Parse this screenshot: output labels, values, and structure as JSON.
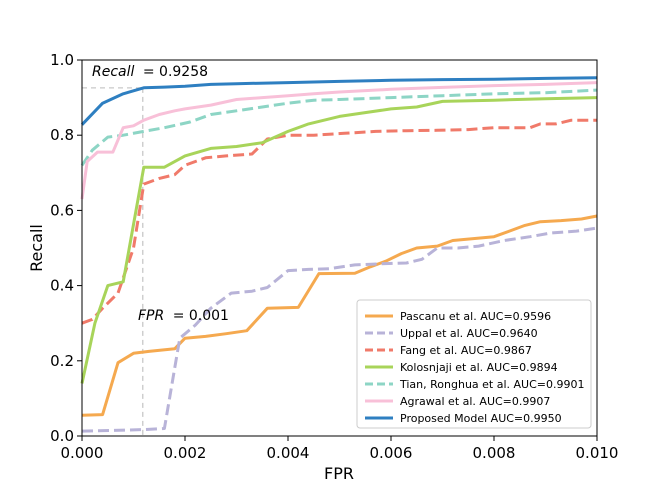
{
  "chart_data": {
    "type": "line",
    "xlabel": "FPR",
    "ylabel": "Recall",
    "xlim": [
      0,
      0.01
    ],
    "ylim": [
      0,
      1.0
    ],
    "xticks": [
      "0.000",
      "0.002",
      "0.004",
      "0.006",
      "0.008",
      "0.010"
    ],
    "yticks": [
      "0.0",
      "0.2",
      "0.4",
      "0.6",
      "0.8",
      "1.0"
    ],
    "xtick_values": [
      0,
      0.002,
      0.004,
      0.006,
      0.008,
      0.01
    ],
    "ytick_values": [
      0,
      0.2,
      0.4,
      0.6,
      0.8,
      1.0
    ],
    "legend_position": "lower-right",
    "annotations": [
      {
        "name": "recall-annotation",
        "label": "Recall",
        "value_text": "= 0.9258",
        "line": "horizontal",
        "value": 0.9258
      },
      {
        "name": "fpr-annotation",
        "label": "FPR",
        "value_text": "= 0.001",
        "line": "vertical",
        "value": 0.00118
      }
    ],
    "series": [
      {
        "name": "Pascanu et al. AUC=0.9596",
        "color": "#f5a94f",
        "dash": "solid",
        "x": [
          0,
          0.0004,
          0.0007,
          0.001,
          0.0013,
          0.0018,
          0.002,
          0.0024,
          0.0028,
          0.0032,
          0.0036,
          0.0042,
          0.0046,
          0.0053,
          0.0056,
          0.0059,
          0.0062,
          0.0065,
          0.0069,
          0.0072,
          0.0076,
          0.008,
          0.0083,
          0.0086,
          0.0089,
          0.0093,
          0.0097,
          0.01
        ],
        "y": [
          0.055,
          0.057,
          0.195,
          0.22,
          0.225,
          0.232,
          0.26,
          0.265,
          0.272,
          0.28,
          0.34,
          0.342,
          0.432,
          0.433,
          0.45,
          0.465,
          0.485,
          0.5,
          0.505,
          0.52,
          0.525,
          0.53,
          0.545,
          0.56,
          0.57,
          0.573,
          0.577,
          0.585
        ]
      },
      {
        "name": "Uppal et al. AUC=0.9640",
        "color": "#b8b3d8",
        "dash": "dashed",
        "x": [
          0,
          0.0006,
          0.0012,
          0.0016,
          0.0019,
          0.0022,
          0.0025,
          0.0029,
          0.0033,
          0.0036,
          0.004,
          0.0044,
          0.0048,
          0.0053,
          0.0058,
          0.0063,
          0.0066,
          0.0069,
          0.0073,
          0.0077,
          0.0082,
          0.0087,
          0.0091,
          0.0096,
          0.01
        ],
        "y": [
          0.013,
          0.015,
          0.017,
          0.02,
          0.26,
          0.295,
          0.34,
          0.38,
          0.385,
          0.395,
          0.44,
          0.443,
          0.445,
          0.455,
          0.458,
          0.46,
          0.47,
          0.5,
          0.5,
          0.505,
          0.52,
          0.53,
          0.54,
          0.545,
          0.553
        ]
      },
      {
        "name": "Fang et al. AUC=0.9867",
        "color": "#f07a6a",
        "dash": "dashed",
        "x": [
          0,
          0.0002,
          0.0004,
          0.0007,
          0.001,
          0.0012,
          0.0015,
          0.0018,
          0.002,
          0.0024,
          0.0028,
          0.0033,
          0.0036,
          0.004,
          0.0045,
          0.0051,
          0.0057,
          0.0063,
          0.0069,
          0.0075,
          0.008,
          0.0083,
          0.0087,
          0.0089,
          0.0092,
          0.0095,
          0.01
        ],
        "y": [
          0.3,
          0.31,
          0.34,
          0.38,
          0.5,
          0.67,
          0.685,
          0.695,
          0.72,
          0.74,
          0.745,
          0.75,
          0.79,
          0.8,
          0.8,
          0.805,
          0.81,
          0.812,
          0.813,
          0.815,
          0.82,
          0.82,
          0.82,
          0.83,
          0.83,
          0.84,
          0.84
        ]
      },
      {
        "name": "Kolosnjaji et al. AUC=0.9894",
        "color": "#a8d45a",
        "dash": "solid",
        "x": [
          0,
          0.00025,
          0.0005,
          0.0008,
          0.0012,
          0.0016,
          0.002,
          0.0025,
          0.003,
          0.0035,
          0.004,
          0.0044,
          0.005,
          0.0055,
          0.006,
          0.0065,
          0.007,
          0.008,
          0.009,
          0.01
        ],
        "y": [
          0.14,
          0.3,
          0.4,
          0.41,
          0.715,
          0.715,
          0.745,
          0.765,
          0.77,
          0.78,
          0.81,
          0.83,
          0.85,
          0.86,
          0.87,
          0.875,
          0.89,
          0.893,
          0.897,
          0.9
        ]
      },
      {
        "name": "Tian, Ronghua et al. AUC=0.9901",
        "color": "#8dd5c5",
        "dash": "dashed",
        "x": [
          0,
          0.0002,
          0.0005,
          0.0008,
          0.0012,
          0.0016,
          0.0021,
          0.0025,
          0.003,
          0.0035,
          0.004,
          0.0045,
          0.005,
          0.006,
          0.007,
          0.008,
          0.009,
          0.01
        ],
        "y": [
          0.72,
          0.76,
          0.795,
          0.8,
          0.81,
          0.82,
          0.835,
          0.855,
          0.865,
          0.875,
          0.885,
          0.893,
          0.895,
          0.9,
          0.905,
          0.91,
          0.913,
          0.92
        ]
      },
      {
        "name": "Agrawal et al. AUC=0.9907",
        "color": "#f8c0d8",
        "dash": "solid",
        "x": [
          0,
          0.0001,
          0.0003,
          0.0006,
          0.0008,
          0.001,
          0.0012,
          0.0015,
          0.0018,
          0.002,
          0.0025,
          0.003,
          0.0035,
          0.004,
          0.0045,
          0.005,
          0.006,
          0.007,
          0.008,
          0.009,
          0.01
        ],
        "y": [
          0.63,
          0.73,
          0.755,
          0.755,
          0.82,
          0.825,
          0.84,
          0.855,
          0.865,
          0.87,
          0.88,
          0.895,
          0.9,
          0.905,
          0.91,
          0.915,
          0.922,
          0.927,
          0.932,
          0.935,
          0.94
        ]
      },
      {
        "name": "Proposed Model AUC=0.9950",
        "color": "#2e7fc1",
        "dash": "solid",
        "x": [
          0,
          0.0004,
          0.0008,
          0.0012,
          0.0016,
          0.002,
          0.0025,
          0.003,
          0.004,
          0.005,
          0.006,
          0.007,
          0.008,
          0.009,
          0.01
        ],
        "y": [
          0.828,
          0.885,
          0.91,
          0.926,
          0.928,
          0.93,
          0.935,
          0.937,
          0.94,
          0.943,
          0.946,
          0.948,
          0.949,
          0.951,
          0.953
        ]
      }
    ]
  }
}
